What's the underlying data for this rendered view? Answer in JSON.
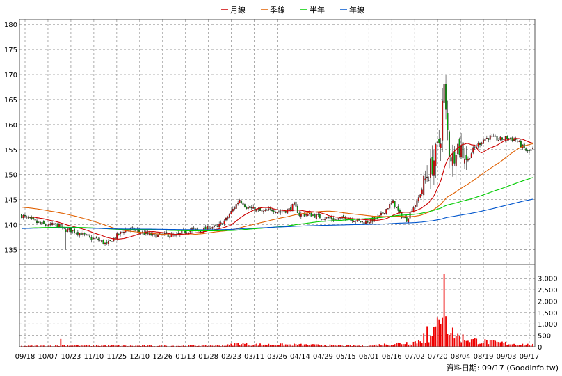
{
  "chart_data": {
    "type": "candlestick",
    "legend": [
      {
        "name": "月線",
        "color": "#cc0000"
      },
      {
        "name": "季線",
        "color": "#e06000"
      },
      {
        "name": "半年",
        "color": "#00cc00"
      },
      {
        "name": "年線",
        "color": "#0055cc"
      }
    ],
    "price_axis": {
      "ylim": [
        132,
        181
      ],
      "ticks": [
        135,
        140,
        145,
        150,
        155,
        160,
        165,
        170,
        175,
        180
      ]
    },
    "volume_axis": {
      "ylim": [
        0,
        3600
      ],
      "ticks": [
        0,
        500,
        1000,
        1500,
        2000,
        2500,
        3000
      ],
      "tick_labels": [
        "0",
        "500",
        "1,000",
        "1,500",
        "2,000",
        "2,500",
        "3,000"
      ]
    },
    "x_labels": [
      "09/18",
      "10/07",
      "10/23",
      "11/10",
      "11/25",
      "12/10",
      "12/26",
      "01/13",
      "01/28",
      "02/23",
      "03/11",
      "03/26",
      "04/14",
      "04/29",
      "05/15",
      "06/01",
      "06/16",
      "07/02",
      "07/20",
      "08/04",
      "08/19",
      "09/03",
      "09/17"
    ],
    "price_key": [
      [
        0,
        141.8
      ],
      [
        5,
        141
      ],
      [
        10,
        140.3
      ],
      [
        15,
        139.8
      ],
      [
        20,
        140
      ],
      [
        25,
        139
      ],
      [
        30,
        138.8
      ],
      [
        35,
        138.2
      ],
      [
        40,
        137.3
      ],
      [
        45,
        137
      ],
      [
        50,
        136
      ],
      [
        55,
        137.5
      ],
      [
        60,
        138.8
      ],
      [
        65,
        139
      ],
      [
        70,
        138.5
      ],
      [
        75,
        138
      ],
      [
        80,
        137.8
      ],
      [
        85,
        138
      ],
      [
        90,
        137.6
      ],
      [
        95,
        138.5
      ],
      [
        100,
        139
      ],
      [
        105,
        138.7
      ],
      [
        110,
        139.5
      ],
      [
        115,
        139.5
      ],
      [
        120,
        141
      ],
      [
        125,
        143.5
      ],
      [
        128,
        145
      ],
      [
        132,
        143.5
      ],
      [
        137,
        143
      ],
      [
        142,
        142.5
      ],
      [
        147,
        143
      ],
      [
        152,
        142.5
      ],
      [
        157,
        143
      ],
      [
        160,
        144
      ],
      [
        163,
        142
      ],
      [
        170,
        142
      ],
      [
        175,
        141.5
      ],
      [
        180,
        141.3
      ],
      [
        185,
        141
      ],
      [
        190,
        141.5
      ],
      [
        195,
        141
      ],
      [
        200,
        140.5
      ],
      [
        205,
        140.8
      ],
      [
        210,
        141.5
      ],
      [
        215,
        143.5
      ],
      [
        218,
        144.5
      ],
      [
        222,
        142
      ],
      [
        226,
        141
      ],
      [
        229,
        143
      ],
      [
        232,
        144.5
      ],
      [
        235,
        147
      ],
      [
        238,
        150
      ],
      [
        241,
        152
      ],
      [
        244,
        155
      ],
      [
        246,
        158
      ],
      [
        247,
        164
      ],
      [
        248,
        167
      ],
      [
        249,
        162
      ],
      [
        251,
        155
      ],
      [
        253,
        153
      ],
      [
        255,
        156
      ],
      [
        258,
        155
      ],
      [
        262,
        153
      ],
      [
        265,
        155
      ],
      [
        268,
        156
      ],
      [
        271,
        157
      ],
      [
        275,
        157.5
      ],
      [
        280,
        157
      ],
      [
        285,
        157.3
      ],
      [
        290,
        157
      ],
      [
        294,
        155.5
      ],
      [
        297,
        154.5
      ],
      [
        300,
        155
      ]
    ],
    "volume_key": [
      [
        0,
        30
      ],
      [
        30,
        60
      ],
      [
        60,
        40
      ],
      [
        90,
        40
      ],
      [
        120,
        60
      ],
      [
        128,
        150
      ],
      [
        135,
        100
      ],
      [
        160,
        90
      ],
      [
        200,
        40
      ],
      [
        215,
        110
      ],
      [
        230,
        200
      ],
      [
        240,
        350
      ],
      [
        244,
        800
      ],
      [
        246,
        1100
      ],
      [
        248,
        3200
      ],
      [
        250,
        900
      ],
      [
        253,
        600
      ],
      [
        258,
        400
      ],
      [
        265,
        280
      ],
      [
        275,
        200
      ],
      [
        290,
        120
      ],
      [
        300,
        80
      ]
    ],
    "volume_spikes": [
      [
        23,
        340
      ],
      [
        248,
        3200
      ],
      [
        238,
        900
      ],
      [
        236,
        600
      ],
      [
        244,
        1300
      ],
      [
        246,
        1000
      ]
    ]
  },
  "credit": "資料日期: 09/17  (Goodinfo.tw)"
}
